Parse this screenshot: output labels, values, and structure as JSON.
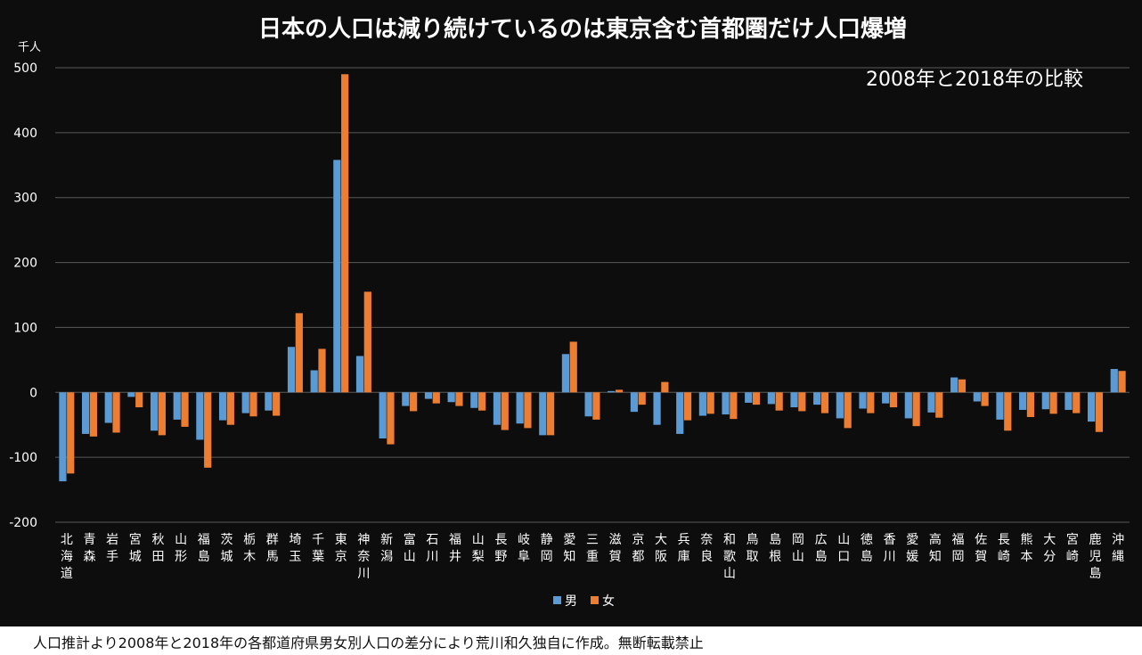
{
  "chart_data": {
    "type": "bar",
    "title": "日本の人口は減り続けているのは東京含む首都圏だけ人口爆増",
    "subtitle": "2008年と2018年の比較",
    "ylabel": "千人",
    "xlabel": "",
    "ylim": [
      -200,
      500
    ],
    "yticks": [
      500,
      400,
      300,
      200,
      100,
      0,
      -100,
      -200
    ],
    "grid": true,
    "legend_position": "bottom",
    "colors": {
      "男": "#5b9bd5",
      "女": "#ed7d31",
      "background": "#0d0d0d",
      "grid": "#595959",
      "text": "#ffffff"
    },
    "categories": [
      "北海道",
      "青森",
      "岩手",
      "宮城",
      "秋田",
      "山形",
      "福島",
      "茨城",
      "栃木",
      "群馬",
      "埼玉",
      "千葉",
      "東京",
      "神奈川",
      "新潟",
      "富山",
      "石川",
      "福井",
      "山梨",
      "長野",
      "岐阜",
      "静岡",
      "愛知",
      "三重",
      "滋賀",
      "京都",
      "大阪",
      "兵庫",
      "奈良",
      "和歌山",
      "鳥取",
      "島根",
      "岡山",
      "広島",
      "山口",
      "徳島",
      "香川",
      "愛媛",
      "高知",
      "福岡",
      "佐賀",
      "長崎",
      "熊本",
      "大分",
      "宮崎",
      "鹿児島",
      "沖縄"
    ],
    "series": [
      {
        "name": "男",
        "values": [
          -137,
          -64,
          -47,
          -7,
          -59,
          -42,
          -73,
          -43,
          -32,
          -28,
          70,
          34,
          358,
          56,
          -71,
          -21,
          -10,
          -15,
          -24,
          -50,
          -48,
          -66,
          59,
          -37,
          2,
          -30,
          -50,
          -64,
          -36,
          -34,
          -16,
          -18,
          -23,
          -19,
          -40,
          -25,
          -17,
          -40,
          -31,
          23,
          -14,
          -42,
          -27,
          -26,
          -27,
          -45,
          36
        ]
      },
      {
        "name": "女",
        "values": [
          -125,
          -68,
          -62,
          -23,
          -66,
          -53,
          -116,
          -50,
          -37,
          -36,
          122,
          67,
          490,
          155,
          -80,
          -29,
          -17,
          -21,
          -28,
          -58,
          -55,
          -66,
          78,
          -42,
          4,
          -19,
          16,
          -43,
          -33,
          -41,
          -19,
          -28,
          -29,
          -32,
          -55,
          -32,
          -23,
          -52,
          -39,
          20,
          -21,
          -59,
          -38,
          -33,
          -32,
          -61,
          33
        ]
      }
    ]
  },
  "footer": {
    "note": "人口推計より2008年と2018年の各都道府県男女別人口の差分により荒川和久独自に作成。無断転載禁止"
  }
}
